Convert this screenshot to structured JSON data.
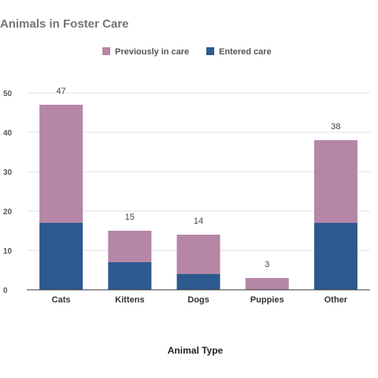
{
  "chart_data": {
    "type": "bar",
    "stacked": true,
    "title": "Animals in Foster Care",
    "xlabel": "Animal Type",
    "ylabel": "",
    "categories": [
      "Cats",
      "Kittens",
      "Dogs",
      "Puppies",
      "Other"
    ],
    "series": [
      {
        "name": "Entered care",
        "values": [
          17,
          7,
          4,
          0,
          17
        ],
        "color": "#2d5a8e"
      },
      {
        "name": "Previously in care",
        "values": [
          30,
          8,
          10,
          3,
          21
        ],
        "color": "#b586a6"
      }
    ],
    "totals": [
      "47",
      "15",
      "14",
      "3",
      "38"
    ],
    "ylim": [
      0,
      50
    ],
    "yticks": [
      "0",
      "10",
      "20",
      "30",
      "40",
      "50"
    ],
    "grid": true,
    "legend": {
      "position": "top",
      "entries": [
        "Previously in care",
        "Entered care"
      ]
    }
  }
}
